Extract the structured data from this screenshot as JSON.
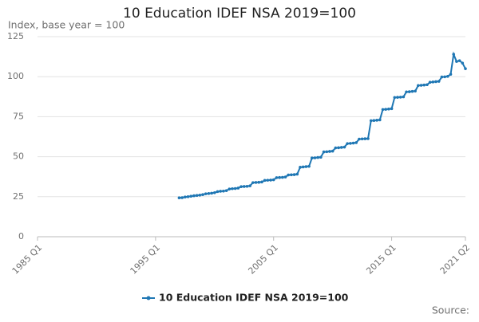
{
  "chart_data": {
    "type": "line",
    "title": "10 Education IDEF NSA 2019=100",
    "y_label": "Index, base year = 100",
    "source": "Source:",
    "categories": [
      "1985 Q1",
      null,
      null,
      null,
      null,
      null,
      null,
      null,
      null,
      null,
      null,
      null,
      null,
      null,
      null,
      null,
      null,
      null,
      null,
      null,
      null,
      null,
      null,
      null,
      null,
      null,
      null,
      null,
      null,
      null,
      null,
      null,
      null,
      null,
      null,
      null,
      null,
      null,
      null,
      null,
      "1995 Q1",
      null,
      null,
      null,
      null,
      null,
      null,
      null,
      null,
      null,
      null,
      null,
      null,
      null,
      null,
      null,
      null,
      null,
      null,
      null,
      null,
      null,
      null,
      null,
      null,
      null,
      null,
      null,
      null,
      null,
      null,
      null,
      null,
      null,
      null,
      null,
      null,
      null,
      null,
      null,
      "2005 Q1",
      null,
      null,
      null,
      null,
      null,
      null,
      null,
      null,
      null,
      null,
      null,
      null,
      null,
      null,
      null,
      null,
      null,
      null,
      null,
      null,
      null,
      null,
      null,
      null,
      null,
      null,
      null,
      null,
      null,
      null,
      null,
      null,
      null,
      null,
      null,
      null,
      null,
      null,
      null,
      "2015 Q1",
      null,
      null,
      null,
      null,
      null,
      null,
      null,
      null,
      null,
      null,
      null,
      null,
      null,
      null,
      null,
      null,
      null,
      null,
      null,
      null,
      null,
      null,
      null,
      null,
      "2021 Q2"
    ],
    "series": [
      {
        "name": "10 Education IDEF NSA 2019=100",
        "color": "#1f77b4",
        "values": [
          null,
          null,
          null,
          null,
          null,
          null,
          null,
          null,
          null,
          null,
          null,
          null,
          null,
          null,
          null,
          null,
          null,
          null,
          null,
          null,
          null,
          null,
          null,
          null,
          null,
          null,
          null,
          null,
          null,
          null,
          null,
          null,
          null,
          null,
          null,
          null,
          null,
          null,
          null,
          null,
          null,
          null,
          null,
          null,
          null,
          null,
          null,
          null,
          24.3,
          24.4,
          24.8,
          25.0,
          25.3,
          25.6,
          25.8,
          26.0,
          26.3,
          26.8,
          27.0,
          27.2,
          27.5,
          28.2,
          28.4,
          28.5,
          28.8,
          29.8,
          30.0,
          30.1,
          30.4,
          31.3,
          31.4,
          31.5,
          31.8,
          33.8,
          33.9,
          34.0,
          34.2,
          35.2,
          35.3,
          35.4,
          35.6,
          36.9,
          37.0,
          37.1,
          37.3,
          38.6,
          38.7,
          38.8,
          39.1,
          43.4,
          43.6,
          43.8,
          44.0,
          49.2,
          49.3,
          49.5,
          49.7,
          53.0,
          53.1,
          53.3,
          53.5,
          55.5,
          55.6,
          55.8,
          56.0,
          58.2,
          58.3,
          58.5,
          58.8,
          61.0,
          61.1,
          61.2,
          61.3,
          72.5,
          72.6,
          72.8,
          73.0,
          79.5,
          79.6,
          79.8,
          80.0,
          87.0,
          87.1,
          87.2,
          87.4,
          90.5,
          90.6,
          90.8,
          91.0,
          94.5,
          94.6,
          94.8,
          95.0,
          96.5,
          96.7,
          96.9,
          97.1,
          99.8,
          99.9,
          100.2,
          101.5,
          114.0,
          109.5,
          110.0,
          108.5,
          105.0
        ]
      }
    ],
    "ylim": [
      0,
      125
    ],
    "yticks": [
      0,
      25,
      50,
      75,
      100,
      125
    ],
    "grid": true
  }
}
